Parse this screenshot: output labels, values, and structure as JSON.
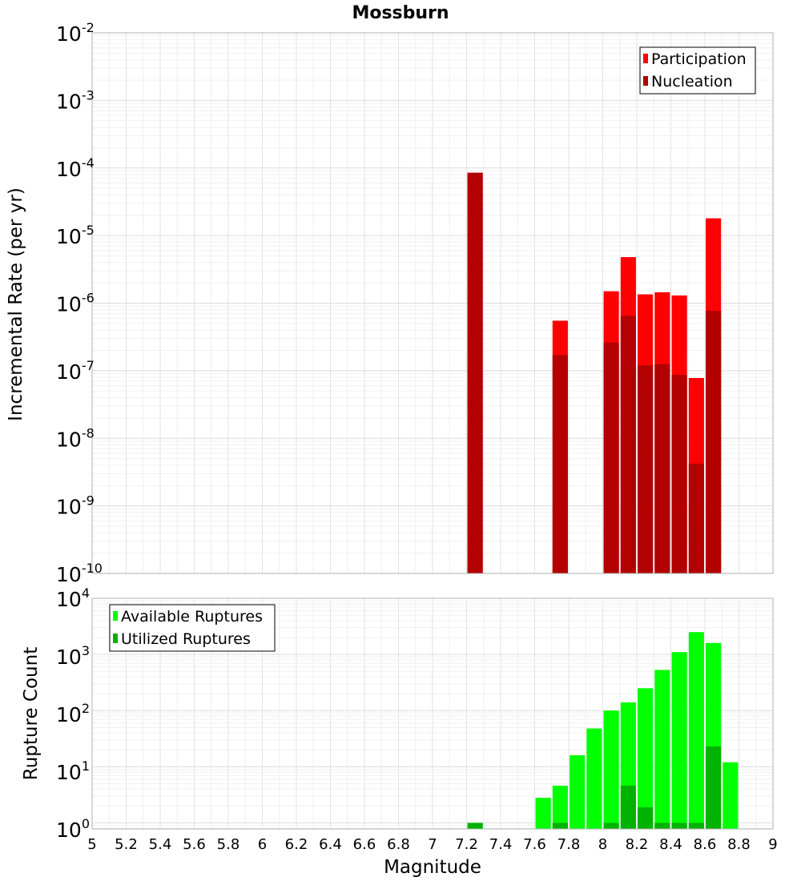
{
  "chart_data": {
    "type": "bar",
    "title": "Mossburn",
    "xlabel": "Magnitude",
    "xlim": [
      5,
      9
    ],
    "xticks": [
      "5",
      "5.2",
      "5.4",
      "5.6",
      "5.8",
      "6",
      "6.2",
      "6.4",
      "6.6",
      "6.8",
      "7",
      "7.2",
      "7.4",
      "7.6",
      "7.8",
      "8",
      "8.2",
      "8.4",
      "8.6",
      "8.8",
      "9"
    ],
    "panels": [
      {
        "ylabel": "Incremental Rate (per yr)",
        "yscale": "log",
        "ylim": [
          1e-10,
          0.01
        ],
        "yticks": [
          {
            "base": "10",
            "exp": "-2"
          },
          {
            "base": "10",
            "exp": "-3"
          },
          {
            "base": "10",
            "exp": "-4"
          },
          {
            "base": "10",
            "exp": "-5"
          },
          {
            "base": "10",
            "exp": "-6"
          },
          {
            "base": "10",
            "exp": "-7"
          },
          {
            "base": "10",
            "exp": "-8"
          },
          {
            "base": "10",
            "exp": "-9"
          },
          {
            "base": "10",
            "exp": "-10"
          }
        ],
        "legend_position": "top-right",
        "series": [
          {
            "name": "Participation",
            "color": "#ff0000",
            "x": [
              7.25,
              7.75,
              8.05,
              8.15,
              8.25,
              8.35,
              8.45,
              8.55,
              8.65
            ],
            "values": [
              8.5e-05,
              5.5e-07,
              1.5e-06,
              4.8e-06,
              1.35e-06,
              1.45e-06,
              1.3e-06,
              7.8e-08,
              1.8e-05
            ]
          },
          {
            "name": "Nucleation",
            "color": "#b30000",
            "x": [
              7.25,
              7.75,
              8.05,
              8.15,
              8.25,
              8.35,
              8.45,
              8.55,
              8.65
            ],
            "values": [
              8.5e-05,
              1.7e-07,
              2.6e-07,
              6.5e-07,
              1.2e-07,
              1.25e-07,
              8.7e-08,
              4.2e-09,
              7.7e-07
            ]
          }
        ]
      },
      {
        "ylabel": "Rupture Count",
        "yscale": "log",
        "ylim": [
          0.78,
          10000
        ],
        "yticks": [
          {
            "base": "10",
            "exp": "4"
          },
          {
            "base": "10",
            "exp": "3"
          },
          {
            "base": "10",
            "exp": "2"
          },
          {
            "base": "10",
            "exp": "1"
          },
          {
            "base": "10",
            "exp": "0"
          }
        ],
        "legend_position": "top-left",
        "series": [
          {
            "name": "Available Ruptures",
            "color": "#00ff00",
            "x": [
              7.25,
              7.65,
              7.75,
              7.85,
              7.95,
              8.05,
              8.15,
              8.25,
              8.35,
              8.45,
              8.55,
              8.65,
              8.75
            ],
            "values": [
              1,
              2.8,
              4.6,
              16,
              48,
              100,
              140,
              250,
              530,
              1100,
              2500,
              1600,
              12
            ]
          },
          {
            "name": "Utilized Ruptures",
            "color": "#00b300",
            "x": [
              7.25,
              7.75,
              8.05,
              8.15,
              8.25,
              8.35,
              8.45,
              8.55,
              8.65
            ],
            "values": [
              1,
              1,
              1,
              4.6,
              1.9,
              1,
              1,
              1,
              23
            ]
          }
        ]
      }
    ]
  }
}
